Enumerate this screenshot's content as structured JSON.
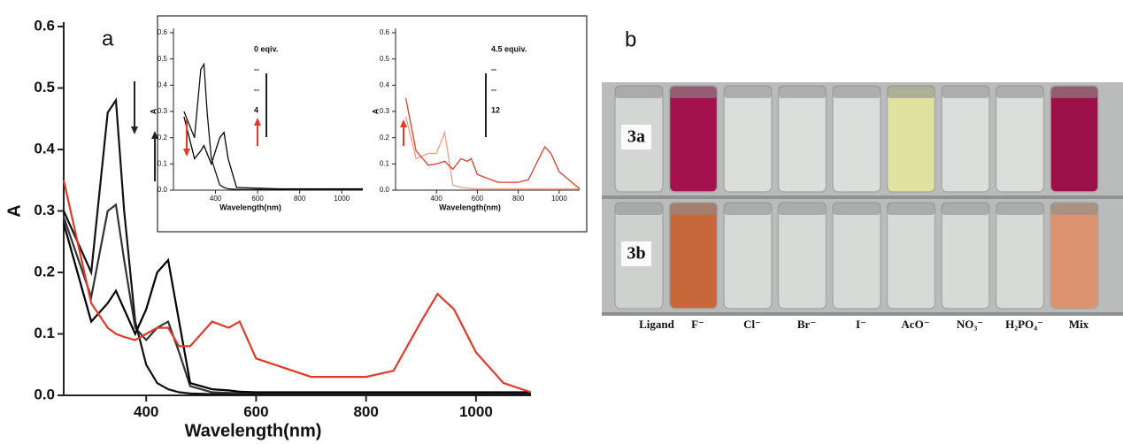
{
  "chart_data": [
    {
      "type": "line",
      "panel_label": "a",
      "xlabel": "Wavelength(nm)",
      "ylabel": "A",
      "xlim": [
        250,
        1100
      ],
      "ylim": [
        0,
        0.6
      ],
      "xticks": [
        400,
        600,
        800,
        1000
      ],
      "yticks": [
        {
          "value": 0,
          "label": "0.0"
        },
        {
          "value": 0.1,
          "label": "0.1"
        },
        {
          "value": 0.2,
          "label": "0.2"
        },
        {
          "value": 0.3,
          "label": "0.3"
        },
        {
          "value": 0.4,
          "label": "0.4"
        },
        {
          "value": 0.5,
          "label": "0.5"
        },
        {
          "value": 0.6,
          "label": "0.6"
        }
      ],
      "x": [
        250,
        300,
        330,
        345,
        360,
        380,
        400,
        420,
        440,
        460,
        480,
        520,
        550,
        570,
        600,
        700,
        800,
        850,
        900,
        930,
        960,
        1000,
        1050,
        1100
      ],
      "series": [
        {
          "color": "#111111",
          "values": [
            0.3,
            0.2,
            0.46,
            0.48,
            0.3,
            0.12,
            0.05,
            0.02,
            0.01,
            0.005,
            0.003,
            0.002,
            0.002,
            0.002,
            0.002,
            0.002,
            0.002,
            0.002,
            0.002,
            0.002,
            0.002,
            0.002,
            0.002,
            0.002
          ]
        },
        {
          "color": "#333333",
          "values": [
            0.29,
            0.16,
            0.3,
            0.31,
            0.22,
            0.11,
            0.09,
            0.11,
            0.12,
            0.07,
            0.015,
            0.005,
            0.004,
            0.004,
            0.004,
            0.004,
            0.004,
            0.004,
            0.004,
            0.004,
            0.004,
            0.004,
            0.004,
            0.004
          ]
        },
        {
          "color": "#000000",
          "values": [
            0.28,
            0.12,
            0.15,
            0.17,
            0.14,
            0.1,
            0.14,
            0.2,
            0.22,
            0.12,
            0.02,
            0.01,
            0.008,
            0.006,
            0.005,
            0.005,
            0.005,
            0.005,
            0.005,
            0.005,
            0.005,
            0.005,
            0.005,
            0.005
          ]
        },
        {
          "color": "#e03a2a",
          "values": [
            0.35,
            0.15,
            0.11,
            0.1,
            0.095,
            0.09,
            0.1,
            0.11,
            0.11,
            0.08,
            0.08,
            0.12,
            0.11,
            0.12,
            0.06,
            0.03,
            0.03,
            0.04,
            0.12,
            0.165,
            0.14,
            0.07,
            0.02,
            0.005
          ]
        }
      ]
    },
    {
      "type": "line",
      "xlabel": "Wavelength(nm)",
      "ylabel": "A",
      "xlim": [
        200,
        1100
      ],
      "ylim": [
        0,
        0.6
      ],
      "xticks": [
        400,
        600,
        800,
        1000
      ],
      "yticks": [
        {
          "value": 0,
          "label": "0.0"
        },
        {
          "value": 0.1,
          "label": "0.1"
        },
        {
          "value": 0.2,
          "label": "0.2"
        },
        {
          "value": 0.3,
          "label": "0.3"
        },
        {
          "value": 0.4,
          "label": "0.4"
        },
        {
          "value": 0.5,
          "label": "0.5"
        },
        {
          "value": 0.6,
          "label": "0.6"
        }
      ],
      "annotations": [
        "0 eqiv.",
        "--",
        "--",
        "4"
      ],
      "x": [
        250,
        300,
        330,
        345,
        360,
        380,
        420,
        440,
        460,
        500,
        700,
        1100
      ],
      "series": [
        {
          "color": "#111111",
          "values": [
            0.3,
            0.2,
            0.46,
            0.48,
            0.3,
            0.12,
            0.02,
            0.01,
            0.005,
            0.003,
            0.002,
            0.002
          ]
        },
        {
          "color": "#000000",
          "values": [
            0.28,
            0.12,
            0.15,
            0.17,
            0.14,
            0.1,
            0.2,
            0.22,
            0.12,
            0.01,
            0.005,
            0.005
          ]
        }
      ]
    },
    {
      "type": "line",
      "xlabel": "Wavelength(nm)",
      "ylabel": "A",
      "xlim": [
        200,
        1100
      ],
      "ylim": [
        0,
        0.6
      ],
      "xticks": [
        400,
        600,
        800,
        1000
      ],
      "yticks": [
        {
          "value": 0,
          "label": "0.0"
        },
        {
          "value": 0.1,
          "label": "0.1"
        },
        {
          "value": 0.2,
          "label": "0.2"
        },
        {
          "value": 0.3,
          "label": "0.3"
        },
        {
          "value": 0.4,
          "label": "0.4"
        },
        {
          "value": 0.5,
          "label": "0.5"
        },
        {
          "value": 0.6,
          "label": "0.6"
        }
      ],
      "annotations": [
        "4.5 equiv.",
        "--",
        "--",
        "12"
      ],
      "x": [
        250,
        300,
        360,
        400,
        440,
        480,
        520,
        550,
        570,
        600,
        700,
        800,
        850,
        900,
        930,
        960,
        1000,
        1100
      ],
      "series": [
        {
          "color": "#f0a080",
          "values": [
            0.28,
            0.12,
            0.14,
            0.14,
            0.22,
            0.02,
            0.01,
            0.008,
            0.006,
            0.005,
            0.005,
            0.005,
            0.005,
            0.005,
            0.005,
            0.005,
            0.005,
            0.005
          ]
        },
        {
          "color": "#e03a2a",
          "values": [
            0.35,
            0.15,
            0.095,
            0.1,
            0.11,
            0.08,
            0.12,
            0.11,
            0.12,
            0.06,
            0.03,
            0.03,
            0.04,
            0.12,
            0.165,
            0.14,
            0.07,
            0.005
          ]
        }
      ]
    }
  ],
  "photo": {
    "panel_label": "b",
    "columns": [
      "Ligand",
      "F⁻",
      "Cl⁻",
      "Br⁻",
      "I⁻",
      "AcO⁻",
      "NO₃⁻",
      "H₂PO₄⁻",
      "Mix"
    ],
    "rows": [
      {
        "label": "3a",
        "colors": [
          "#d4d6d4",
          "#a3124f",
          "#dcdedc",
          "#dcdedc",
          "#dcdedc",
          "#e2e2a0",
          "#dcdedc",
          "#dcdedc",
          "#9c1048"
        ]
      },
      {
        "label": "3b",
        "colors": [
          "#cfd1cf",
          "#c7683a",
          "#d8dad8",
          "#d8dad8",
          "#d8dad8",
          "#d8dad8",
          "#d8dad8",
          "#d8dad8",
          "#dc9470"
        ]
      }
    ]
  }
}
